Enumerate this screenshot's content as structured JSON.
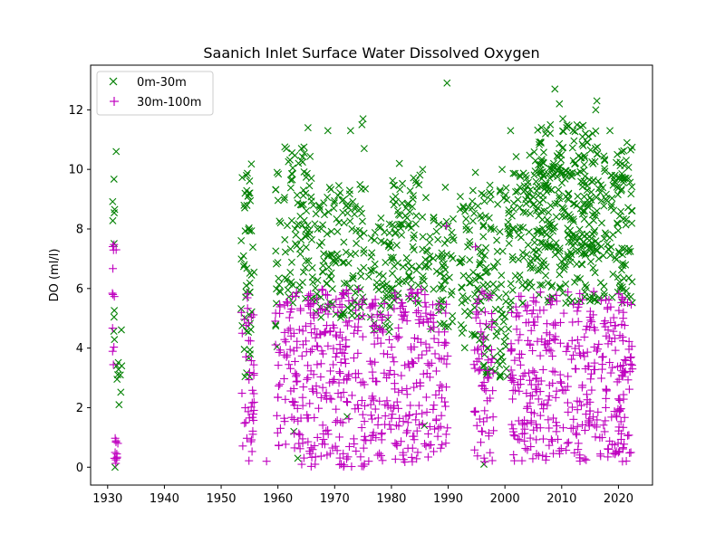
{
  "chart_data": {
    "type": "scatter",
    "title": "Saanich Inlet Surface Water Dissolved Oxygen",
    "xlabel": "",
    "ylabel": "DO (ml/l)",
    "xlim": [
      1927,
      2026
    ],
    "ylim": [
      -0.6,
      13.5
    ],
    "xticks": [
      1930,
      1940,
      1950,
      1960,
      1970,
      1980,
      1990,
      2000,
      2010,
      2020
    ],
    "yticks": [
      0,
      2,
      4,
      6,
      8,
      10,
      12
    ],
    "grid": false,
    "legend_position": "top-left",
    "series": [
      {
        "name": "0m-30m",
        "marker": "x",
        "color": "#008000",
        "clusters": [
          {
            "x": [
              1930.8,
              1931.3
            ],
            "y": [
              3.0,
              9.7
            ]
          },
          {
            "x": [
              1931.5,
              1932.5
            ],
            "y": [
              2.0,
              5.0
            ]
          },
          {
            "x": [
              1953.5,
              1955.8
            ],
            "y": [
              3.0,
              10.2
            ]
          },
          {
            "x": [
              1959.5,
              1960.5
            ],
            "y": [
              4.0,
              10.0
            ]
          },
          {
            "x": [
              1961.0,
              1966.0
            ],
            "y": [
              5.5,
              10.8
            ]
          },
          {
            "x": [
              1966.0,
              1975.5
            ],
            "y": [
              5.0,
              9.5
            ]
          },
          {
            "x": [
              1976.0,
              1980.0
            ],
            "y": [
              4.5,
              8.5
            ]
          },
          {
            "x": [
              1980.0,
              1986.5
            ],
            "y": [
              5.5,
              10.0
            ]
          },
          {
            "x": [
              1986.5,
              1991.0
            ],
            "y": [
              4.5,
              8.5
            ]
          },
          {
            "x": [
              1992.0,
              1996.0
            ],
            "y": [
              4.0,
              9.5
            ]
          },
          {
            "x": [
              1996.0,
              2001.0
            ],
            "y": [
              3.0,
              9.5
            ]
          },
          {
            "x": [
              2001.0,
              2021.0
            ],
            "y": [
              5.5,
              10.5
            ]
          },
          {
            "x": [
              2005.0,
              2016.5
            ],
            "y": [
              7.0,
              11.5
            ]
          },
          {
            "x": [
              2020.0,
              2022.5
            ],
            "y": [
              5.5,
              10.8
            ]
          }
        ],
        "points": [
          [
            1931.3,
            0.0
          ],
          [
            1931.5,
            10.6
          ],
          [
            1932.0,
            2.1
          ],
          [
            1965.3,
            11.4
          ],
          [
            1968.8,
            11.3
          ],
          [
            1972.8,
            11.3
          ],
          [
            1975.0,
            11.7
          ],
          [
            1974.8,
            11.5
          ],
          [
            1975.2,
            10.7
          ],
          [
            1981.4,
            10.2
          ],
          [
            1985.5,
            10.0
          ],
          [
            1989.8,
            12.9
          ],
          [
            1989.5,
            9.4
          ],
          [
            1994.8,
            9.9
          ],
          [
            1999.5,
            10.0
          ],
          [
            2001.0,
            11.3
          ],
          [
            2008.8,
            12.7
          ],
          [
            2009.6,
            12.2
          ],
          [
            2010.2,
            11.7
          ],
          [
            2008.0,
            11.5
          ],
          [
            2012.0,
            11.3
          ],
          [
            2016.2,
            12.3
          ],
          [
            2016.0,
            12.0
          ],
          [
            2018.5,
            11.3
          ],
          [
            2021.5,
            10.9
          ],
          [
            2019.8,
            10.5
          ],
          [
            2014.5,
            10.9
          ],
          [
            1996.3,
            0.1
          ],
          [
            1985.8,
            1.4
          ],
          [
            1972.2,
            1.7
          ],
          [
            1963.5,
            0.3
          ],
          [
            1962.8,
            1.2
          ],
          [
            1984.0,
            7.8
          ],
          [
            1983.0,
            8.1
          ],
          [
            1990.0,
            8.1
          ]
        ]
      },
      {
        "name": "30m-100m",
        "marker": "+",
        "color": "#bf00bf",
        "clusters": [
          {
            "x": [
              1930.8,
              1931.4
            ],
            "y": [
              1.8,
              7.5
            ]
          },
          {
            "x": [
              1931.2,
              1931.7
            ],
            "y": [
              0.0,
              1.0
            ]
          },
          {
            "x": [
              1953.5,
              1955.8
            ],
            "y": [
              0.2,
              6.0
            ]
          },
          {
            "x": [
              1959.5,
              1960.5
            ],
            "y": [
              0.2,
              6.0
            ]
          },
          {
            "x": [
              1961.0,
              1966.0
            ],
            "y": [
              0.0,
              6.0
            ]
          },
          {
            "x": [
              1966.0,
              1975.5
            ],
            "y": [
              0.0,
              6.0
            ]
          },
          {
            "x": [
              1976.0,
              1980.0
            ],
            "y": [
              0.2,
              5.7
            ]
          },
          {
            "x": [
              1980.0,
              1986.5
            ],
            "y": [
              0.0,
              6.0
            ]
          },
          {
            "x": [
              1986.5,
              1990.0
            ],
            "y": [
              0.5,
              5.5
            ]
          },
          {
            "x": [
              1994.5,
              1998.0
            ],
            "y": [
              0.0,
              6.0
            ]
          },
          {
            "x": [
              2001.0,
              2021.0
            ],
            "y": [
              0.2,
              5.9
            ]
          },
          {
            "x": [
              2020.0,
              2022.5
            ],
            "y": [
              0.0,
              5.8
            ]
          }
        ],
        "points": [
          [
            1931.5,
            7.3
          ],
          [
            1931.2,
            0.3
          ],
          [
            1931.6,
            0.3
          ],
          [
            1931.8,
            0.8
          ],
          [
            1994.8,
            7.4
          ],
          [
            1989.7,
            8.1
          ],
          [
            1976.0,
            0.2
          ],
          [
            1958.0,
            0.2
          ]
        ]
      }
    ]
  }
}
